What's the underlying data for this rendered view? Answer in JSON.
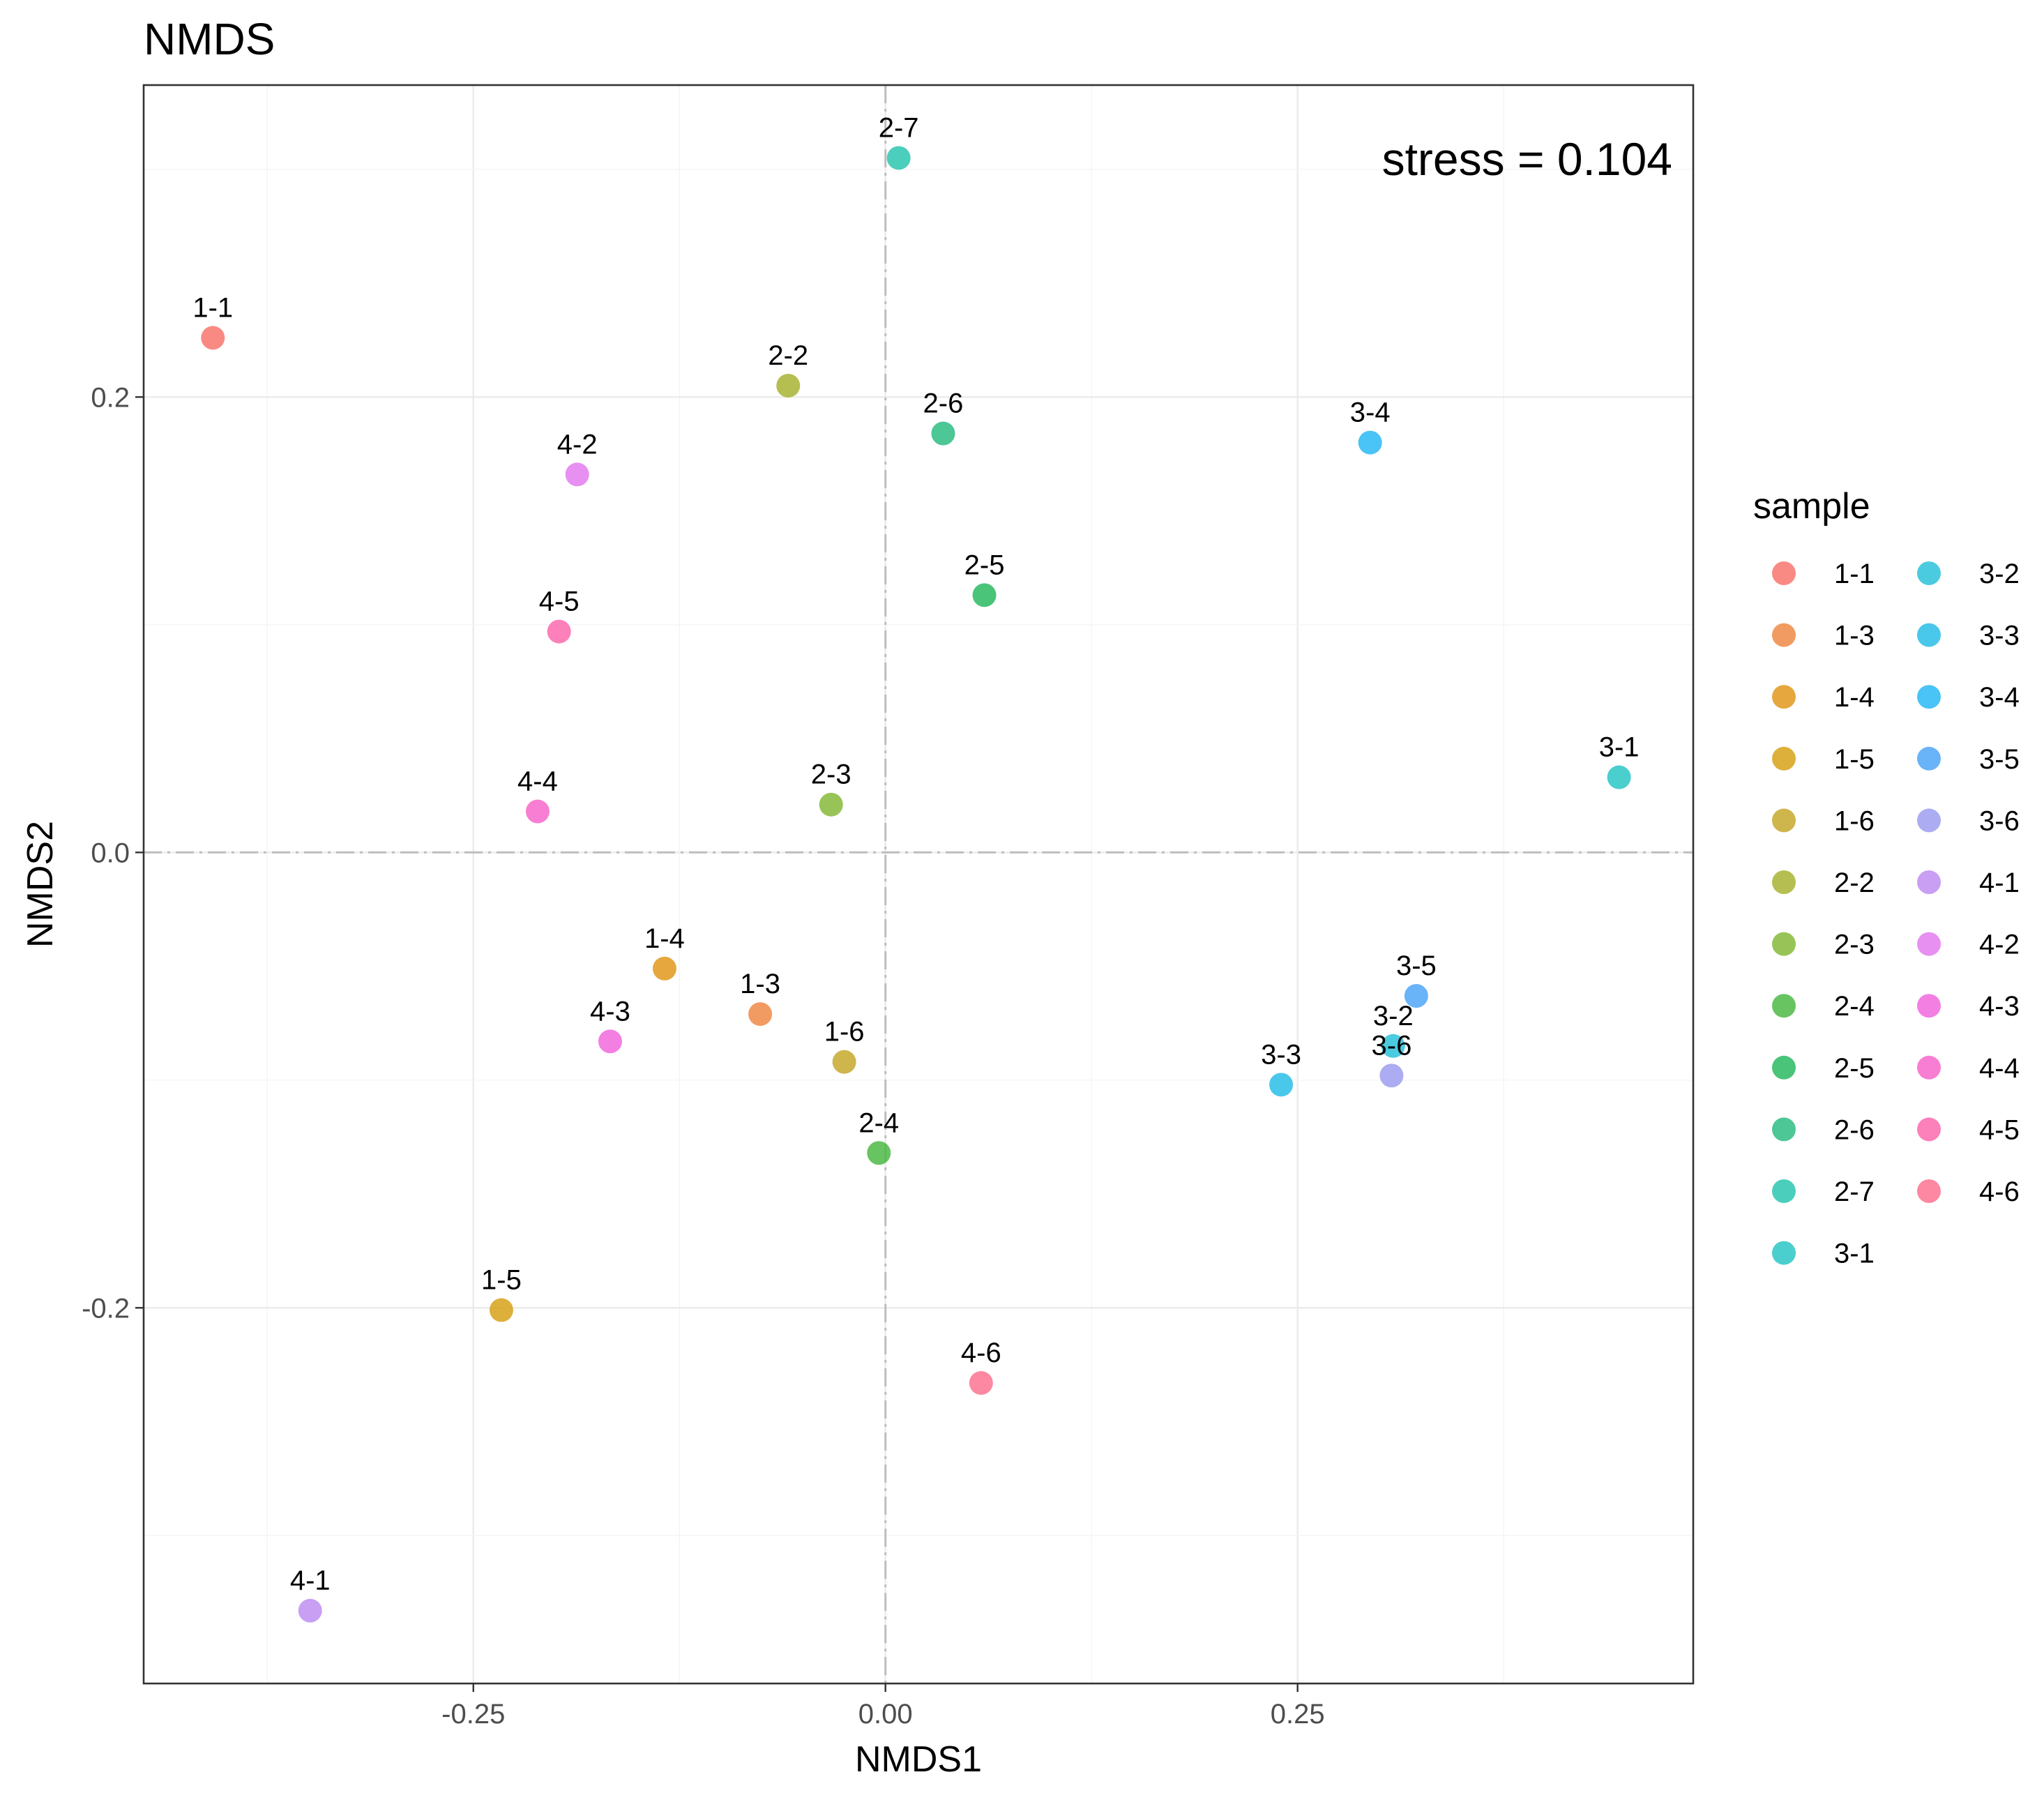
{
  "chart_data": {
    "type": "scatter",
    "title": "NMDS",
    "xlabel": "NMDS1",
    "ylabel": "NMDS2",
    "xlim": [
      -0.45,
      0.49
    ],
    "ylim": [
      -0.365,
      0.337
    ],
    "xticks": [
      -0.25,
      0.0,
      0.25
    ],
    "xtick_labels": [
      "-0.25",
      "0.00",
      "0.25"
    ],
    "yticks": [
      -0.2,
      0.0,
      0.2
    ],
    "ytick_labels": [
      "-0.2",
      "0.0",
      "0.2"
    ],
    "grid": true,
    "zero_lines": true,
    "annotation": "stress = 0.104",
    "legend": {
      "title": "sample",
      "placement": "right",
      "columns": [
        [
          "1-1",
          "1-3",
          "1-4",
          "1-5",
          "1-6",
          "2-2",
          "2-3",
          "2-4",
          "2-5",
          "2-6",
          "2-7",
          "3-1"
        ],
        [
          "3-2",
          "3-3",
          "3-4",
          "3-5",
          "3-6",
          "4-1",
          "4-2",
          "4-3",
          "4-4",
          "4-5",
          "4-6"
        ]
      ]
    },
    "points": [
      {
        "label": "1-1",
        "x": -0.408,
        "y": 0.226,
        "color": "#F8766D"
      },
      {
        "label": "1-3",
        "x": -0.076,
        "y": -0.071,
        "color": "#EE8A47"
      },
      {
        "label": "1-4",
        "x": -0.134,
        "y": -0.051,
        "color": "#E1981C"
      },
      {
        "label": "1-5",
        "x": -0.233,
        "y": -0.201,
        "color": "#D7A21A"
      },
      {
        "label": "1-6",
        "x": -0.025,
        "y": -0.092,
        "color": "#C5A92E"
      },
      {
        "label": "2-2",
        "x": -0.059,
        "y": 0.205,
        "color": "#A8B432"
      },
      {
        "label": "2-3",
        "x": -0.033,
        "y": 0.021,
        "color": "#86BA39"
      },
      {
        "label": "2-4",
        "x": -0.004,
        "y": -0.132,
        "color": "#4EBA45"
      },
      {
        "label": "2-5",
        "x": 0.06,
        "y": 0.113,
        "color": "#29BA61"
      },
      {
        "label": "2-6",
        "x": 0.035,
        "y": 0.184,
        "color": "#2DBD82"
      },
      {
        "label": "2-7",
        "x": 0.008,
        "y": 0.305,
        "color": "#2DC6B0"
      },
      {
        "label": "3-1",
        "x": 0.445,
        "y": 0.033,
        "color": "#2CC5C6"
      },
      {
        "label": "3-2",
        "x": 0.308,
        "y": -0.085,
        "color": "#2BC2D9"
      },
      {
        "label": "3-3",
        "x": 0.24,
        "y": -0.102,
        "color": "#29BEE8"
      },
      {
        "label": "3-4",
        "x": 0.294,
        "y": 0.18,
        "color": "#2AB8F5"
      },
      {
        "label": "3-5",
        "x": 0.322,
        "y": -0.063,
        "color": "#4FA6F7"
      },
      {
        "label": "3-6",
        "x": 0.307,
        "y": -0.098,
        "color": "#9E9EF1"
      },
      {
        "label": "4-1",
        "x": -0.349,
        "y": -0.333,
        "color": "#BE8EF0"
      },
      {
        "label": "4-2",
        "x": -0.187,
        "y": 0.166,
        "color": "#E47DF0"
      },
      {
        "label": "4-3",
        "x": -0.167,
        "y": -0.083,
        "color": "#F168DE"
      },
      {
        "label": "4-4",
        "x": -0.211,
        "y": 0.018,
        "color": "#F767CB"
      },
      {
        "label": "4-5",
        "x": -0.198,
        "y": 0.097,
        "color": "#FB6AAE"
      },
      {
        "label": "4-6",
        "x": 0.058,
        "y": -0.233,
        "color": "#FC7391"
      }
    ]
  }
}
